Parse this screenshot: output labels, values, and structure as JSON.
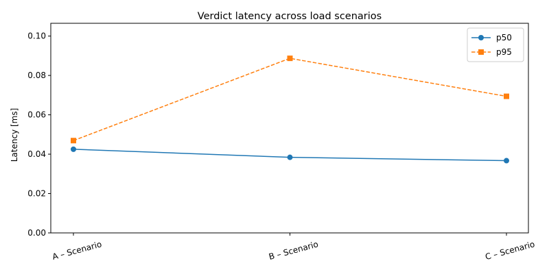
{
  "chart_data": {
    "type": "line",
    "title": "Verdict latency across load scenarios",
    "xlabel": "",
    "ylabel": "Latency [ms]",
    "categories": [
      "A – Scenario",
      "B – Scenario",
      "C – Scenario"
    ],
    "ylim": [
      0,
      0.1065
    ],
    "yticks": [
      "0.00",
      "0.02",
      "0.04",
      "0.06",
      "0.08",
      "0.10"
    ],
    "grid": false,
    "legend_position": "top-right",
    "series": [
      {
        "name": "p50",
        "values": [
          0.0425,
          0.0384,
          0.0367
        ],
        "color": "#1f77b4",
        "marker": "circle",
        "linestyle": "solid"
      },
      {
        "name": "p95",
        "values": [
          0.0469,
          0.0887,
          0.0694
        ],
        "color": "#ff7f0e",
        "marker": "square",
        "linestyle": "dashed"
      }
    ]
  }
}
